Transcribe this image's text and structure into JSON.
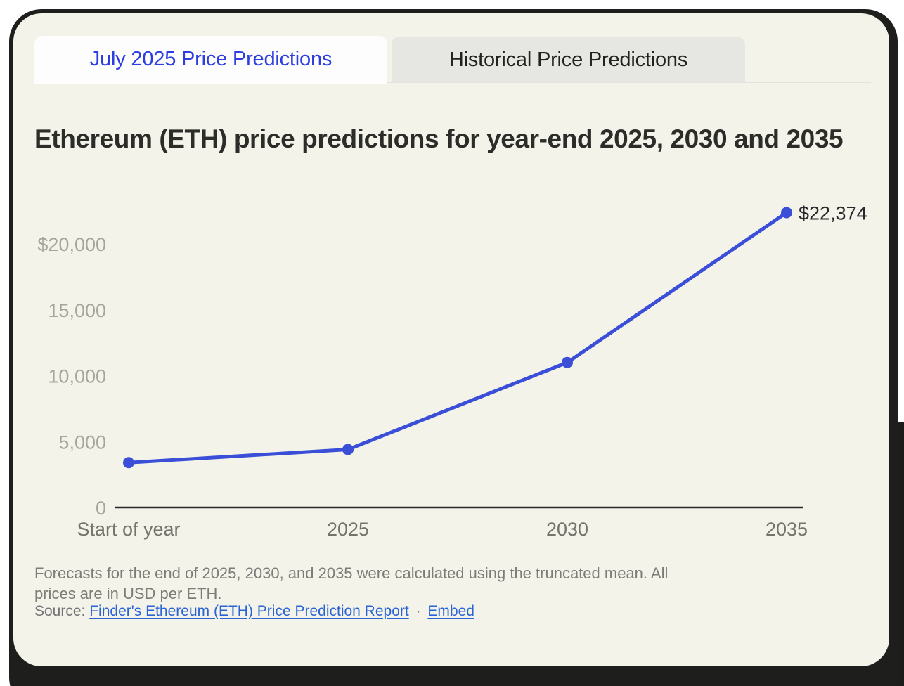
{
  "tabs": {
    "active": {
      "label": "July 2025 Price Predictions"
    },
    "inactive": {
      "label": "Historical Price Predictions"
    }
  },
  "title": "Ethereum (ETH) price predictions for year-end 2025, 2030 and 2035",
  "chart_data": {
    "type": "line",
    "title": "Ethereum (ETH) price predictions for year-end 2025, 2030 and 2035",
    "categories": [
      "Start of year",
      "2025",
      "2030",
      "2035"
    ],
    "values": [
      3400,
      4400,
      11000,
      22374
    ],
    "annotations": [
      {
        "index": 3,
        "label": "$22,374"
      }
    ],
    "yticks": [
      {
        "value": 0,
        "label": "0"
      },
      {
        "value": 5000,
        "label": "5,000"
      },
      {
        "value": 10000,
        "label": "10,000"
      },
      {
        "value": 15000,
        "label": "15,000"
      },
      {
        "value": 20000,
        "label": "$20,000"
      }
    ],
    "ylim": [
      0,
      22500
    ],
    "grid": false,
    "legend": "none",
    "line_color": "#3a4ed8"
  },
  "footer": {
    "note": "Forecasts for the end of 2025, 2030, and 2035 were calculated using the truncated mean. All prices are in USD per ETH.",
    "source_label": "Source:",
    "source_link": "Finder's Ethereum (ETH) Price Prediction Report",
    "separator": "·",
    "embed_link": "Embed"
  },
  "colors": {
    "card_background": "#f3f3ea",
    "frame": "#1e1e1c",
    "active_tab_text": "#2c3ee0",
    "line": "#3a4ed8",
    "link": "#2a63d6"
  }
}
